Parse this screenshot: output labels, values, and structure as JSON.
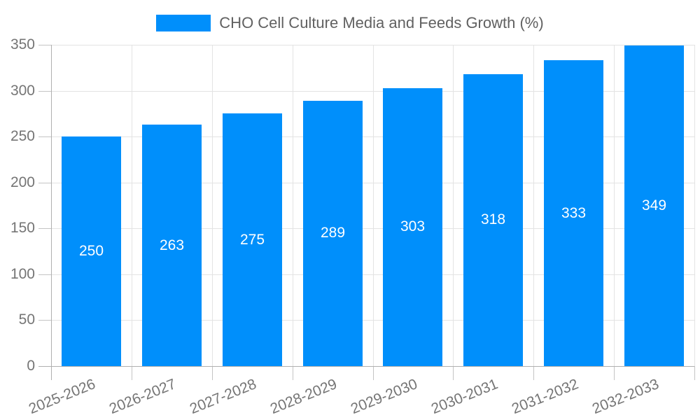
{
  "legend": {
    "label": "CHO Cell Culture Media and Feeds Growth (%)"
  },
  "chart_data": {
    "type": "bar",
    "title": "CHO Cell Culture Media and Feeds Growth (%)",
    "categories": [
      "2025-2026",
      "2026-2027",
      "2027-2028",
      "2028-2029",
      "2029-2030",
      "2030-2031",
      "2031-2032",
      "2032-2033"
    ],
    "series": [
      {
        "name": "CHO Cell Culture Media and Feeds Growth (%)",
        "values": [
          250,
          263,
          275,
          289,
          303,
          318,
          333,
          349
        ]
      }
    ],
    "xlabel": "",
    "ylabel": "",
    "ylim": [
      0,
      350
    ],
    "ytick_step": 50,
    "ytick_labels": [
      "0",
      "50",
      "100",
      "150",
      "200",
      "250",
      "300",
      "350"
    ],
    "grid": "horizontal and vertical",
    "legend_position": "top-center",
    "bar_label_position": "inside-middle"
  },
  "colors": {
    "bar": "#008FFB",
    "bar_label": "#ffffff",
    "axis_line": "#b0b0b0",
    "tick": "#c4c4c4",
    "gridline": "#e3e3e3",
    "axis_label": "#757575",
    "legend_text": "#616161",
    "background": "#ffffff"
  }
}
